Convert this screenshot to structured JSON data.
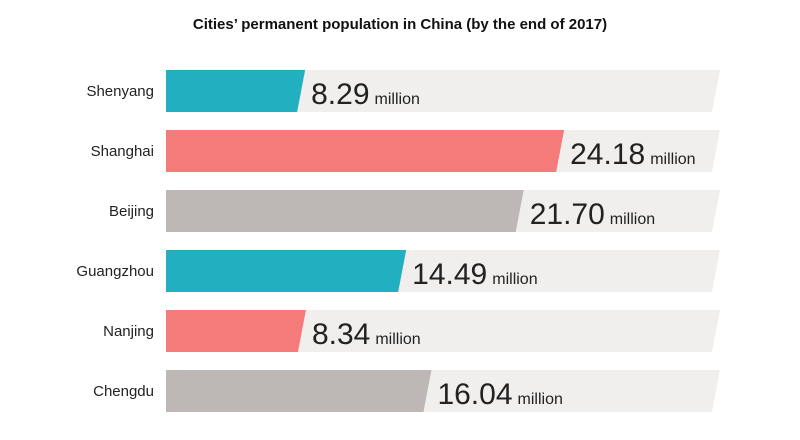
{
  "chart_data": {
    "type": "bar",
    "orientation": "horizontal",
    "title": "Cities’ permanent population in China (by the end of 2017)",
    "categories": [
      "Shenyang",
      "Shanghai",
      "Beijing",
      "Guangzhou",
      "Nanjing",
      "Chengdu"
    ],
    "values": [
      8.29,
      24.18,
      21.7,
      14.49,
      8.34,
      16.04
    ],
    "value_labels": [
      "8.29",
      "24.18",
      "21.70",
      "14.49",
      "8.34",
      "16.04"
    ],
    "unit": "million",
    "xlim": [
      0,
      27
    ],
    "grid": false,
    "legend": "none",
    "colors": [
      "#22b0c0",
      "#f57a7a",
      "#bdb8b5",
      "#22b0c0",
      "#f57a7a",
      "#bdb8b5"
    ],
    "track_color": "#f0efee"
  }
}
